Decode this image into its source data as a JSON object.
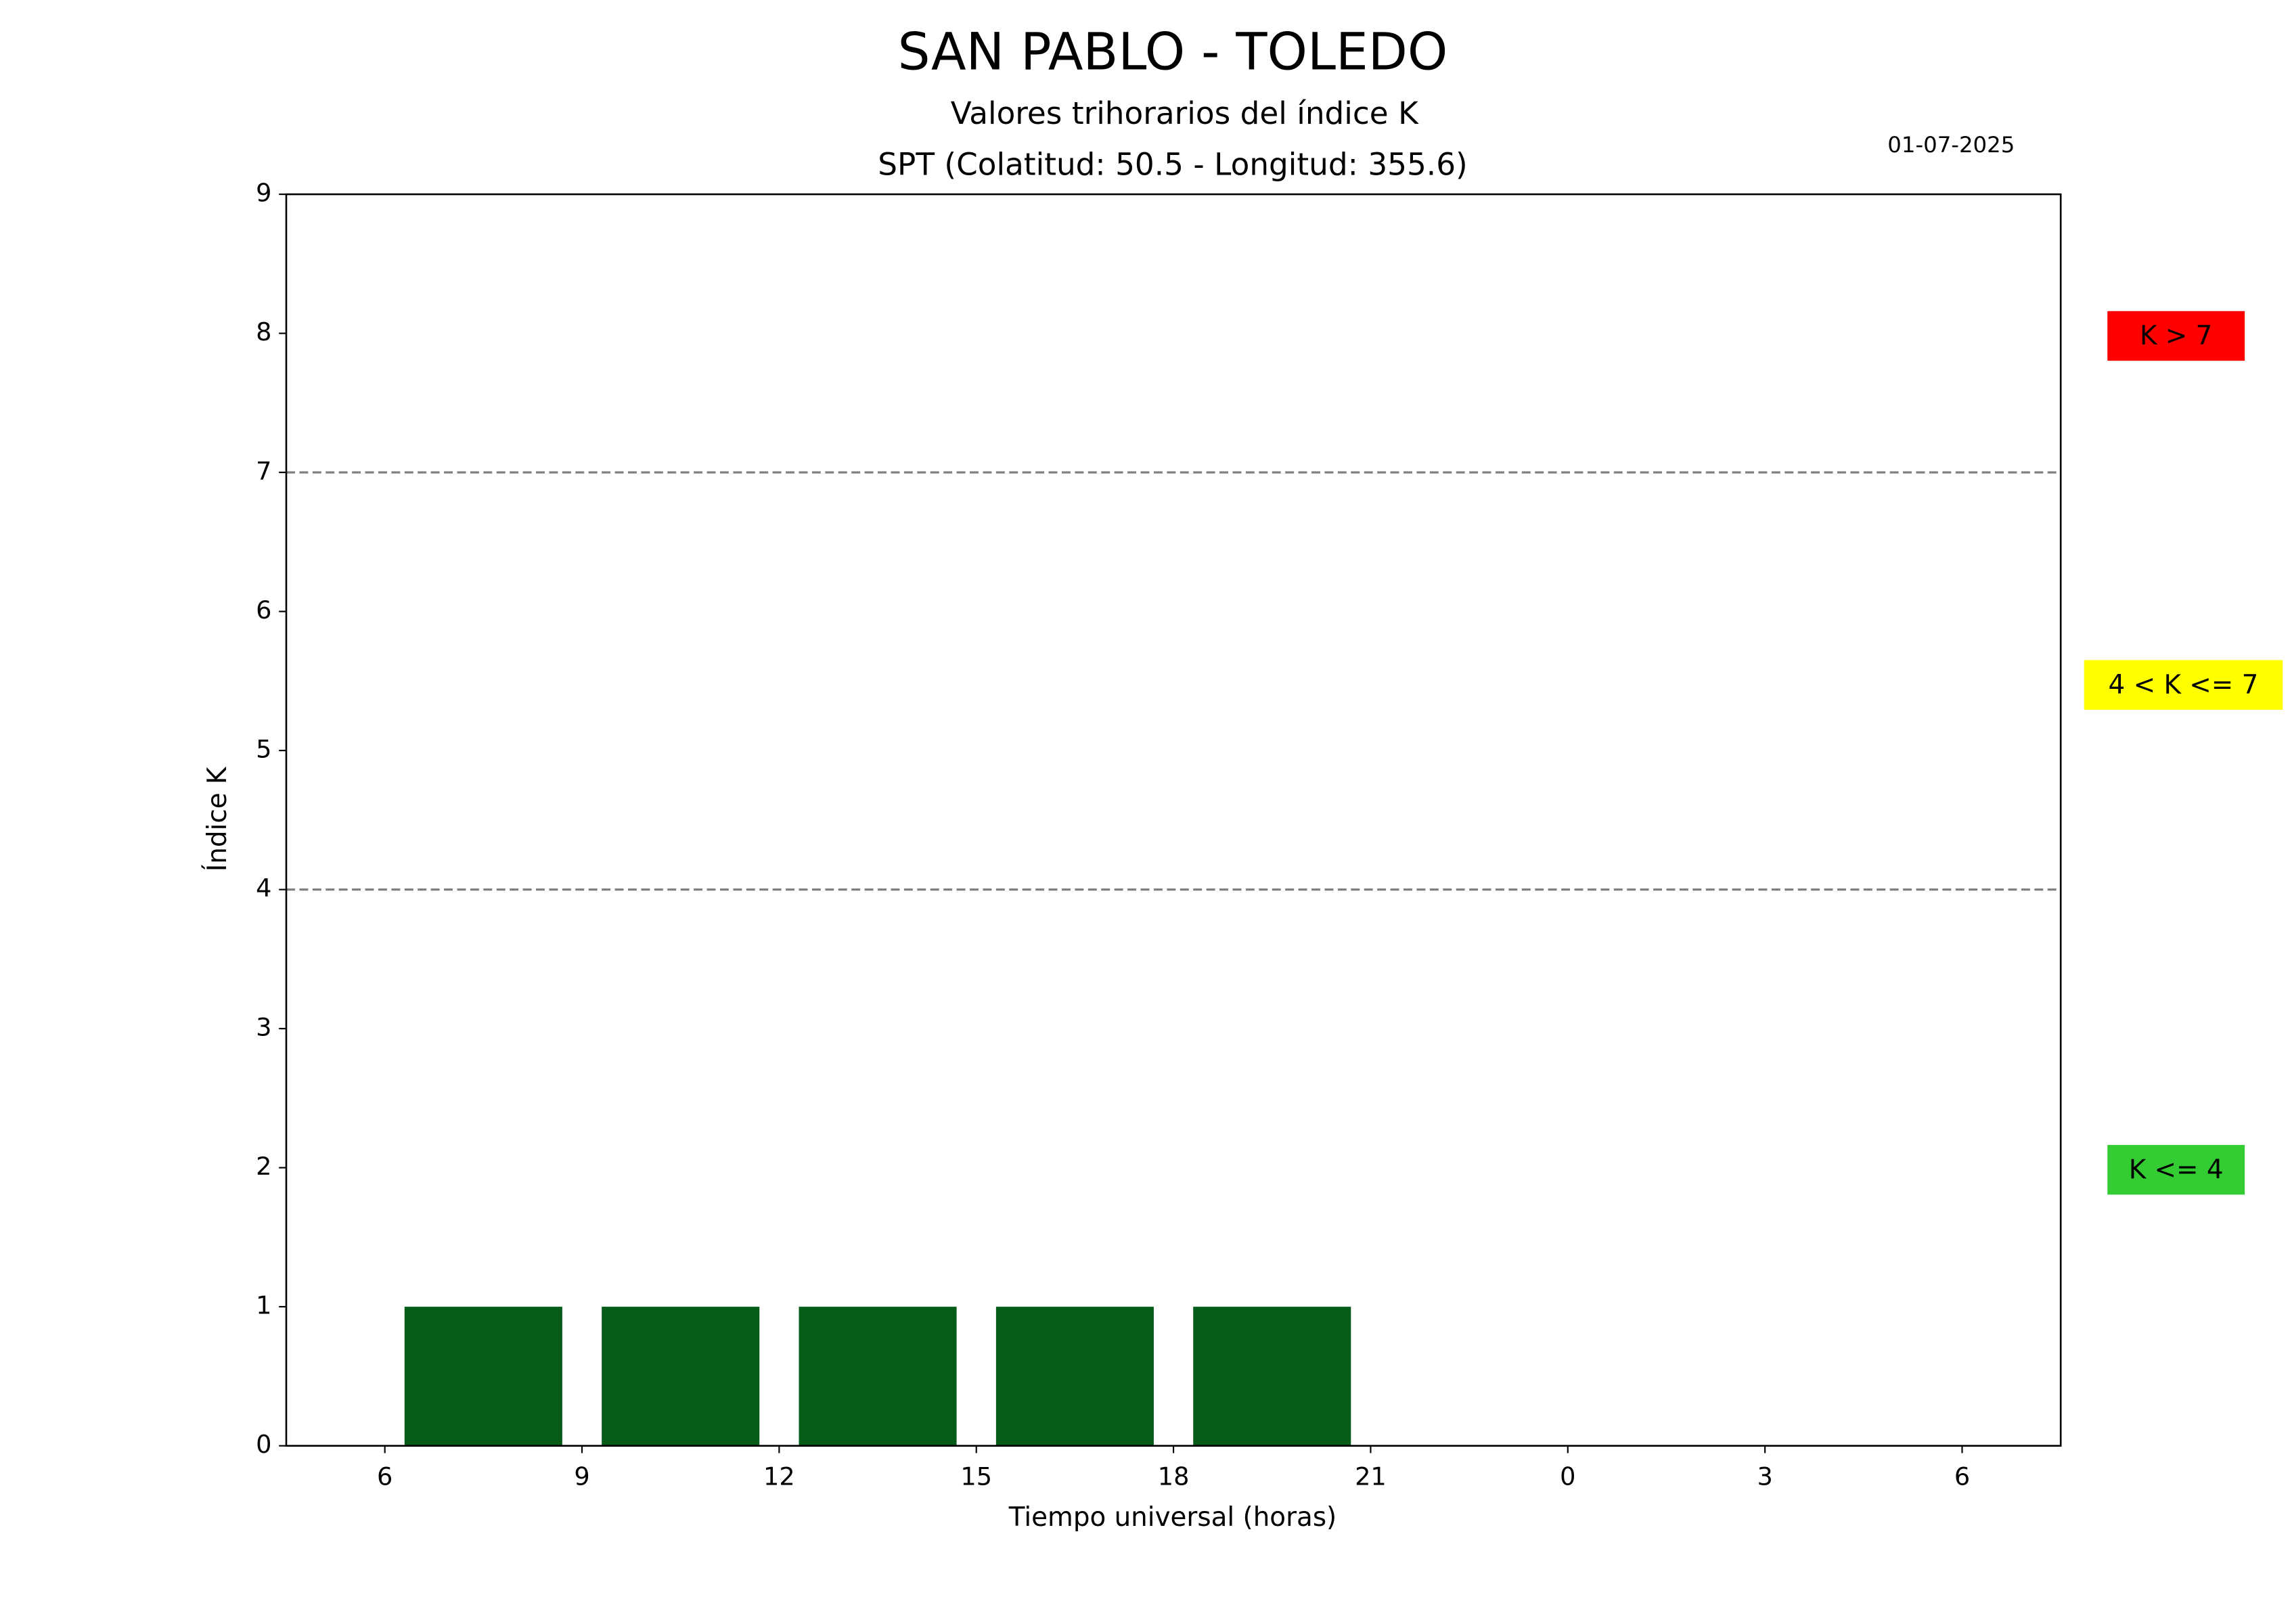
{
  "chart_data": {
    "type": "bar",
    "title": "SAN PABLO - TOLEDO",
    "subtitle": "Valores trihorarios del índice K",
    "subtitle2": "SPT (Colatitud: 50.5 - Longitud: 355.6)",
    "date": "01-07-2025",
    "xlabel": "Tiempo universal (horas)",
    "ylabel": "Índice K",
    "x": [
      7.5,
      10.5,
      13.5,
      16.5,
      19.5
    ],
    "values": [
      1,
      1,
      1,
      1,
      1
    ],
    "color": "#055c19",
    "xlim": [
      4.5,
      31.5
    ],
    "xticks": [
      6,
      9,
      12,
      15,
      18,
      21,
      {
        "value": 24,
        "label": "0"
      },
      {
        "value": 27,
        "label": "3"
      },
      {
        "value": 30,
        "label": "6"
      }
    ],
    "ylim": [
      0,
      9
    ],
    "yticks": [
      0,
      1,
      2,
      3,
      4,
      5,
      6,
      7,
      8,
      9
    ],
    "threshold_lines": [
      4,
      7
    ],
    "legend": [
      {
        "label": "K > 7",
        "color": "#ff0000"
      },
      {
        "label": "4 < K <= 7",
        "color": "#ffff00"
      },
      {
        "label": "K <= 4",
        "color": "#33cc33"
      }
    ]
  }
}
